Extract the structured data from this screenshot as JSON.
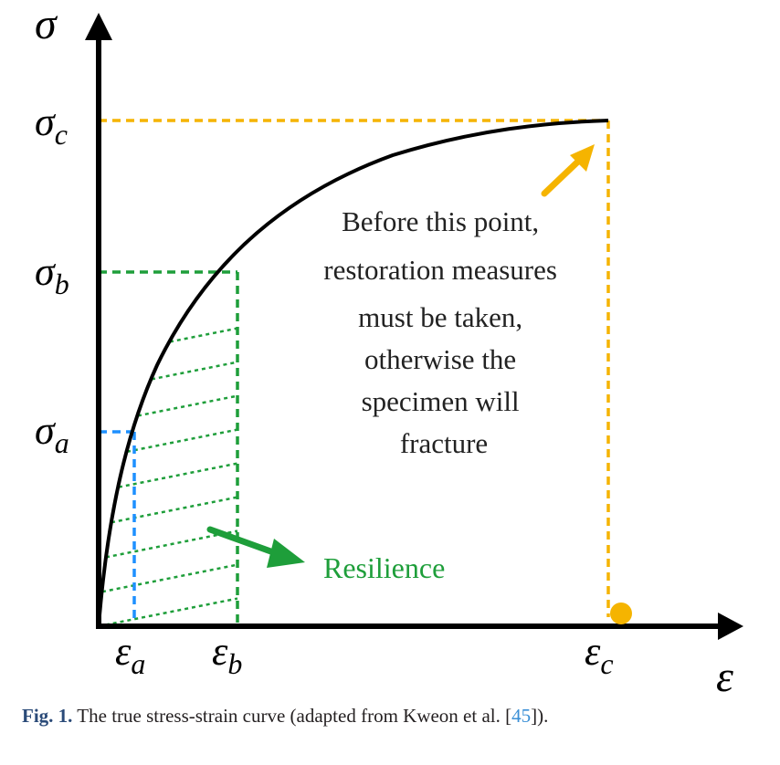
{
  "axes": {
    "y_label": "σ",
    "x_label": "ε"
  },
  "stress_levels": [
    {
      "id": "a",
      "base": "σ",
      "sub": "a"
    },
    {
      "id": "b",
      "base": "σ",
      "sub": "b"
    },
    {
      "id": "c",
      "base": "σ",
      "sub": "c"
    }
  ],
  "strain_levels": [
    {
      "id": "a",
      "base": "ε",
      "sub": "a"
    },
    {
      "id": "b",
      "base": "ε",
      "sub": "b"
    },
    {
      "id": "c",
      "base": "ε",
      "sub": "c"
    }
  ],
  "annotation": {
    "lines": [
      "Before this point,",
      "restoration measures",
      "must be taken,",
      "otherwise the",
      "specimen will",
      "fracture"
    ]
  },
  "resilience_label": "Resilience",
  "caption": {
    "label": "Fig. 1.",
    "text": "The true stress-strain curve (adapted from Kweon et al. [",
    "ref": "45",
    "tail": "])."
  },
  "colors": {
    "curve": "#000000",
    "level_a": "#1e90ff",
    "level_b": "#1e9e3a",
    "level_c": "#f5b400",
    "resilience": "#1e9e3a",
    "caption_label": "#2a4a78",
    "caption_ref": "#3a8fd6"
  }
}
